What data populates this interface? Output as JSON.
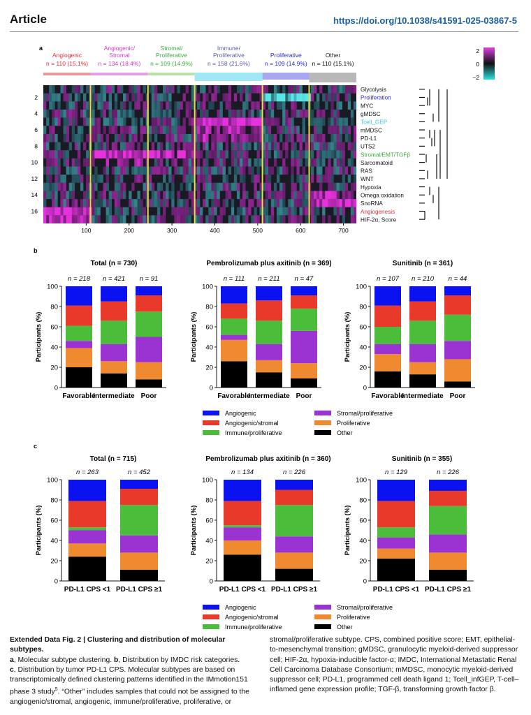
{
  "header": {
    "article": "Article",
    "doi": "https://doi.org/10.1038/s41591-025-03867-5"
  },
  "panel_a": {
    "label": "a",
    "clusters": [
      {
        "name": "Angiogenic",
        "n": "n = 110 (15.1%)",
        "color": "#e0303a",
        "range": [
          1,
          110
        ]
      },
      {
        "name": "Angiogenic/\nStromal",
        "n": "n = 134 (18.4%)",
        "color": "#d438d4",
        "range": [
          111,
          244
        ]
      },
      {
        "name": "Stromal/\nProliferative",
        "n": "n = 109 (14.9%)",
        "color": "#3cae3c",
        "range": [
          245,
          353
        ]
      },
      {
        "name": "Immune/\nProliferative",
        "n": "n = 158 (21.6%)",
        "color": "#5a5aa8",
        "range": [
          354,
          511
        ]
      },
      {
        "name": "Proliferative",
        "n": "n = 109 (14.9%)",
        "color": "#2a2ad8",
        "range": [
          512,
          620
        ]
      },
      {
        "name": "Other",
        "n": "n = 110 (15.1%)",
        "color": "#222222",
        "range": [
          621,
          730
        ]
      }
    ],
    "rows": [
      {
        "label": "Glycolysis",
        "color": "#111111"
      },
      {
        "label": "Proliferation",
        "color": "#2a2ad8"
      },
      {
        "label": "MYC",
        "color": "#111111"
      },
      {
        "label": "gMDSC",
        "color": "#111111"
      },
      {
        "label": "Tcell_GEP",
        "color": "#3ac8e8"
      },
      {
        "label": "mMDSC",
        "color": "#111111"
      },
      {
        "label": "PD-L1",
        "color": "#111111"
      },
      {
        "label": "UTS2",
        "color": "#111111"
      },
      {
        "label": "Stromal/EMT/TGFβ",
        "color": "#3cae3c"
      },
      {
        "label": "Sarcomatoid",
        "color": "#111111"
      },
      {
        "label": "RAS",
        "color": "#111111"
      },
      {
        "label": "WNT",
        "color": "#111111"
      },
      {
        "label": "Hypoxia",
        "color": "#111111"
      },
      {
        "label": "Omega oxidation",
        "color": "#111111"
      },
      {
        "label": "SnoRNA",
        "color": "#111111"
      },
      {
        "label": "Angiogenesis",
        "color": "#e0303a"
      },
      {
        "label": "HIF-2α, Score",
        "color": "#111111"
      }
    ],
    "row_ticks": [
      "2",
      "4",
      "6",
      "8",
      "10",
      "12",
      "14",
      "16"
    ],
    "col_ticks": [
      "100",
      "200",
      "300",
      "400",
      "500",
      "600",
      "700"
    ],
    "colorbar": {
      "max": "2",
      "mid": "0",
      "min": "−2"
    }
  },
  "legend_labels": {
    "angiogenic": "Angiogenic",
    "angio_stromal": "Angiogenic/stromal",
    "immune_prolif": "Immune/proliferative",
    "stromal_prolif": "Stromal/proliferative",
    "proliferative": "Proliferative",
    "other": "Other"
  },
  "colors": {
    "angiogenic": "#0a12f0",
    "angio_stromal": "#e8392a",
    "immune_prolif": "#4cbd3a",
    "stromal_prolif": "#9b32d2",
    "proliferative": "#f08a30",
    "other": "#000000"
  },
  "panel_b": {
    "label": "b",
    "ylabel": "Participants (%)",
    "charts": [
      {
        "title": "Total (n = 730)",
        "categories": [
          "Favorable",
          "Intermediate",
          "Poor"
        ],
        "n": [
          "n = 218",
          "n = 421",
          "n = 91"
        ],
        "series": {
          "other": [
            20,
            14,
            8
          ],
          "proliferative": [
            19,
            12,
            17
          ],
          "stromal_prolif": [
            7,
            17,
            25
          ],
          "immune_prolif": [
            15,
            23,
            25
          ],
          "angio_stromal": [
            20,
            19,
            16
          ],
          "angiogenic": [
            19,
            15,
            9
          ]
        }
      },
      {
        "title": "Pembrolizumab plus axitinib (n = 369)",
        "categories": [
          "Favorable",
          "Intermediate",
          "Poor"
        ],
        "n": [
          "n = 111",
          "n = 211",
          "n = 47"
        ],
        "series": {
          "other": [
            26,
            15,
            9
          ],
          "proliferative": [
            21,
            12,
            15
          ],
          "stromal_prolif": [
            5,
            16,
            32
          ],
          "immune_prolif": [
            16,
            23,
            22
          ],
          "angio_stromal": [
            15,
            20,
            13
          ],
          "angiogenic": [
            17,
            14,
            9
          ]
        }
      },
      {
        "title": "Sunitinib (n = 361)",
        "categories": [
          "Favorable",
          "Intermediate",
          "Poor"
        ],
        "n": [
          "n = 107",
          "n = 210",
          "n = 44"
        ],
        "series": {
          "other": [
            16,
            13,
            6
          ],
          "proliferative": [
            17,
            12,
            22
          ],
          "stromal_prolif": [
            10,
            18,
            18
          ],
          "immune_prolif": [
            17,
            23,
            26
          ],
          "angio_stromal": [
            21,
            19,
            19
          ],
          "angiogenic": [
            19,
            15,
            9
          ]
        }
      }
    ]
  },
  "panel_c": {
    "label": "c",
    "ylabel": "Participants (%)",
    "charts": [
      {
        "title": "Total (n = 715)",
        "categories": [
          "PD-L1 CPS <1",
          "PD-L1 CPS ≥1"
        ],
        "n": [
          "n = 263",
          "n = 452"
        ],
        "series": {
          "other": [
            24,
            11
          ],
          "proliferative": [
            13,
            17
          ],
          "stromal_prolif": [
            13,
            17
          ],
          "immune_prolif": [
            3,
            30
          ],
          "angio_stromal": [
            26,
            16
          ],
          "angiogenic": [
            21,
            9
          ]
        }
      },
      {
        "title": "Pembrolizumab plus axitinib (n = 360)",
        "categories": [
          "PD-L1 CPS <1",
          "PD-L1 CPS ≥1"
        ],
        "n": [
          "n = 134",
          "n = 226"
        ],
        "series": {
          "other": [
            26,
            12
          ],
          "proliferative": [
            14,
            16
          ],
          "stromal_prolif": [
            13,
            16
          ],
          "immune_prolif": [
            2,
            31
          ],
          "angio_stromal": [
            24,
            15
          ],
          "angiogenic": [
            21,
            10
          ]
        }
      },
      {
        "title": "Sunitinib (n = 355)",
        "categories": [
          "PD-L1 CPS <1",
          "PD-L1 CPS ≥1"
        ],
        "n": [
          "n = 129",
          "n = 226"
        ],
        "series": {
          "other": [
            22,
            11
          ],
          "proliferative": [
            10,
            17
          ],
          "stromal_prolif": [
            11,
            18
          ],
          "immune_prolif": [
            10,
            28
          ],
          "angio_stromal": [
            26,
            15
          ],
          "angiogenic": [
            21,
            11
          ]
        }
      }
    ]
  },
  "yticks": [
    "0",
    "20",
    "40",
    "60",
    "80",
    "100"
  ],
  "caption": {
    "title": "Extended Data Fig. 2 | Clustering and distribution of molecular subtypes.",
    "a": "a",
    "a_text": ", Molecular subtype clustering. ",
    "b": "b",
    "b_text": ", Distribution by IMDC risk categories.",
    "c": "c",
    "c_text": ", Distribution by tumor PD-L1 CPS. Molecular subtypes are based on transcriptomically defined clustering patterns identified in the IMmotion151 phase 3 study",
    "ref": "5",
    "c_text2": ". “Other” includes samples that could not be assigned to the angiogenic/stromal, angiogenic, immune/proliferative, proliferative, or",
    "right": "stromal/proliferative subtype. CPS, combined positive score; EMT, epithelial-to-mesenchymal transition; gMDSC, granulocytic myeloid-derived suppressor cell; HIF-2α, hypoxia-inducible factor-α; IMDC, International Metastatic Renal Cell Carcinoma Database Consortium; mMDSC, monocytic myeloid-derived suppressor cell; PD-L1, programmed cell death ligand 1; Tcell_infGEP, T-cell–inflamed gene expression profile; TGF-β, transforming growth factor β."
  }
}
